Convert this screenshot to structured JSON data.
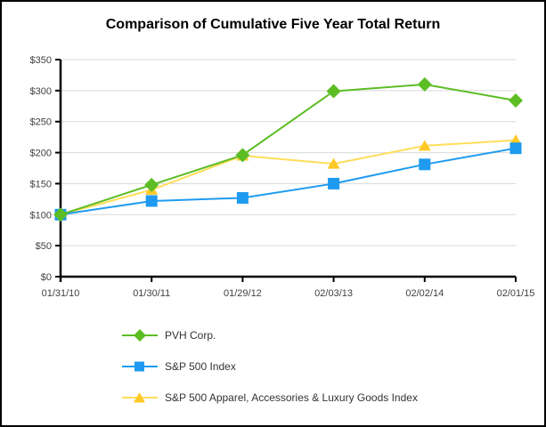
{
  "chart_data": {
    "type": "line",
    "title": "Comparison of Cumulative Five Year Total Return",
    "x_categories": [
      "01/31/10",
      "01/30/11",
      "01/29/12",
      "02/03/13",
      "02/02/14",
      "02/01/15"
    ],
    "y_axis": {
      "min": 0,
      "max": 350,
      "step": 50
    },
    "y_tick_labels": [
      "$0",
      "$50",
      "$100",
      "$150",
      "$200",
      "$250",
      "$300",
      "$350"
    ],
    "grid": "horizontal",
    "legend_position": "bottom-left",
    "series": [
      {
        "name": "PVH Corp.",
        "marker": "diamond",
        "line_color": "#5CBD24",
        "marker_color": "#5CBD24",
        "values": [
          100,
          148,
          196,
          299,
          310,
          284
        ]
      },
      {
        "name": "S&P 500 Index",
        "marker": "square",
        "line_color": "#1E9BF0",
        "marker_color": "#1E9BF0",
        "values": [
          100,
          122,
          127,
          150,
          181,
          207
        ]
      },
      {
        "name": "S&P 500 Apparel, Accessories & Luxury Goods Index",
        "marker": "triangle",
        "line_color": "#FFDE59",
        "marker_color": "#FFC926",
        "values": [
          100,
          140,
          195,
          182,
          211,
          220
        ]
      }
    ],
    "colors": {
      "gridline": "#D9D9D9",
      "axis": "#000000",
      "tick_label": "#404040",
      "legend_text": "#333333",
      "background": "#FFFFFF",
      "border": "#000000"
    }
  }
}
